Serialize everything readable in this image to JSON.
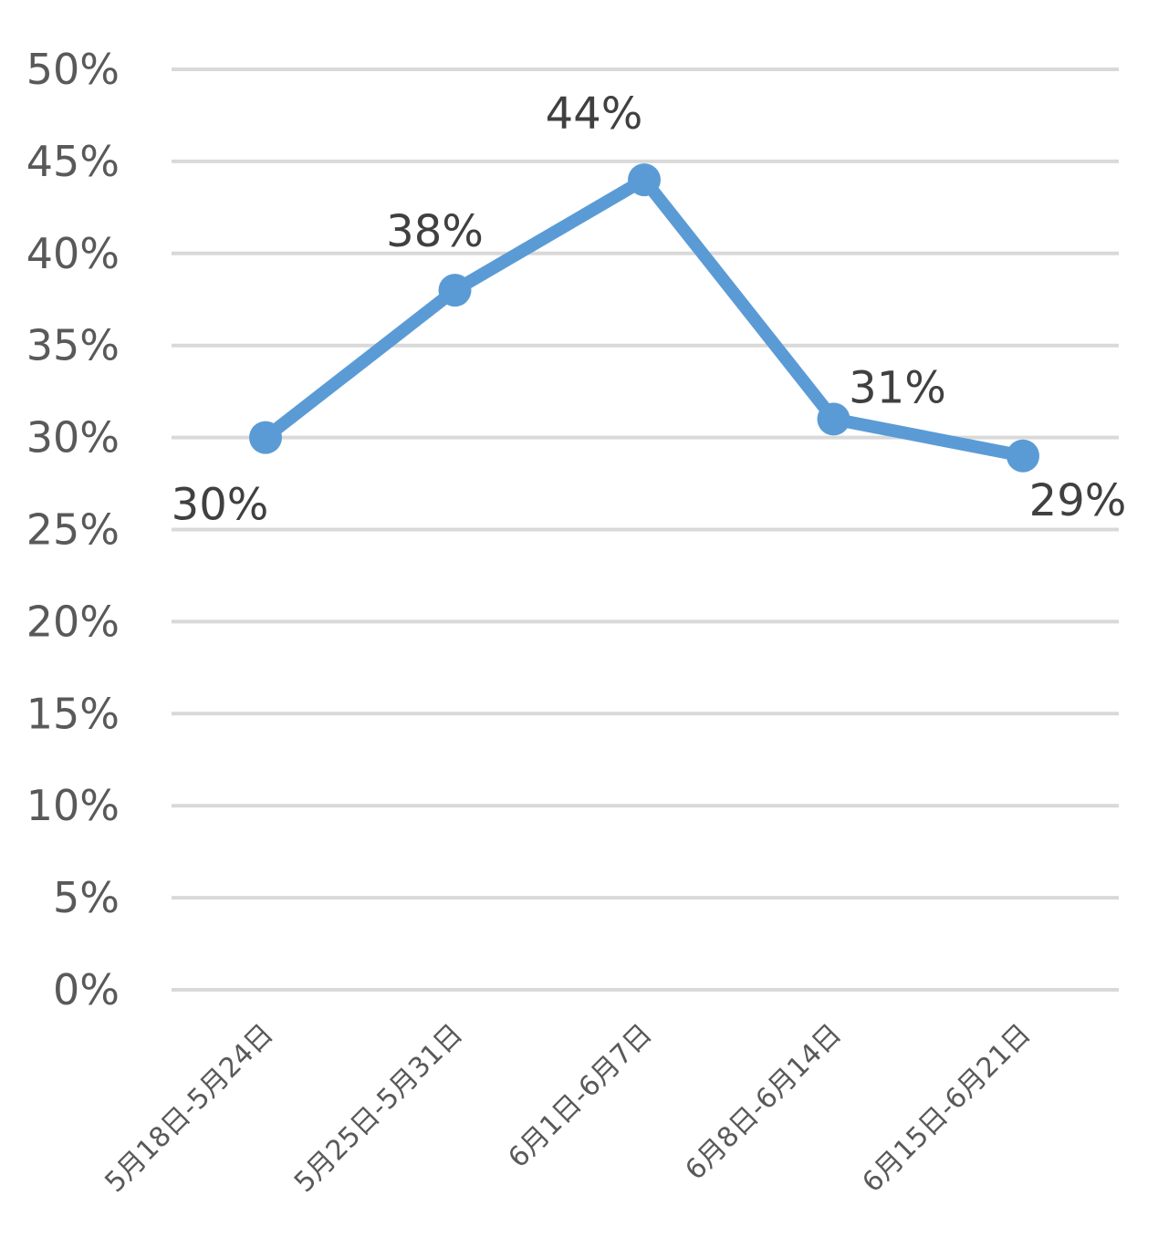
{
  "chart_data": {
    "type": "line",
    "title": "",
    "xlabel": "",
    "ylabel": "",
    "categories": [
      "5月18日-5月24日",
      "5月25日-5月31日",
      "6月1日-6月7日",
      "6月8日-6月14日",
      "6月15日-6月21日"
    ],
    "series": [
      {
        "values": [
          30,
          38,
          44,
          31,
          29
        ],
        "labels": [
          "30%",
          "38%",
          "44%",
          "31%",
          "29%"
        ],
        "color": "#5b9bd5"
      }
    ],
    "ylim": [
      0,
      50
    ],
    "yticks": [
      0,
      5,
      10,
      15,
      20,
      25,
      30,
      35,
      40,
      45,
      50
    ],
    "ytick_labels": [
      "0%",
      "5%",
      "10%",
      "15%",
      "20%",
      "25%",
      "30%",
      "35%",
      "40%",
      "45%",
      "50%"
    ],
    "grid": true,
    "legend": "none"
  }
}
